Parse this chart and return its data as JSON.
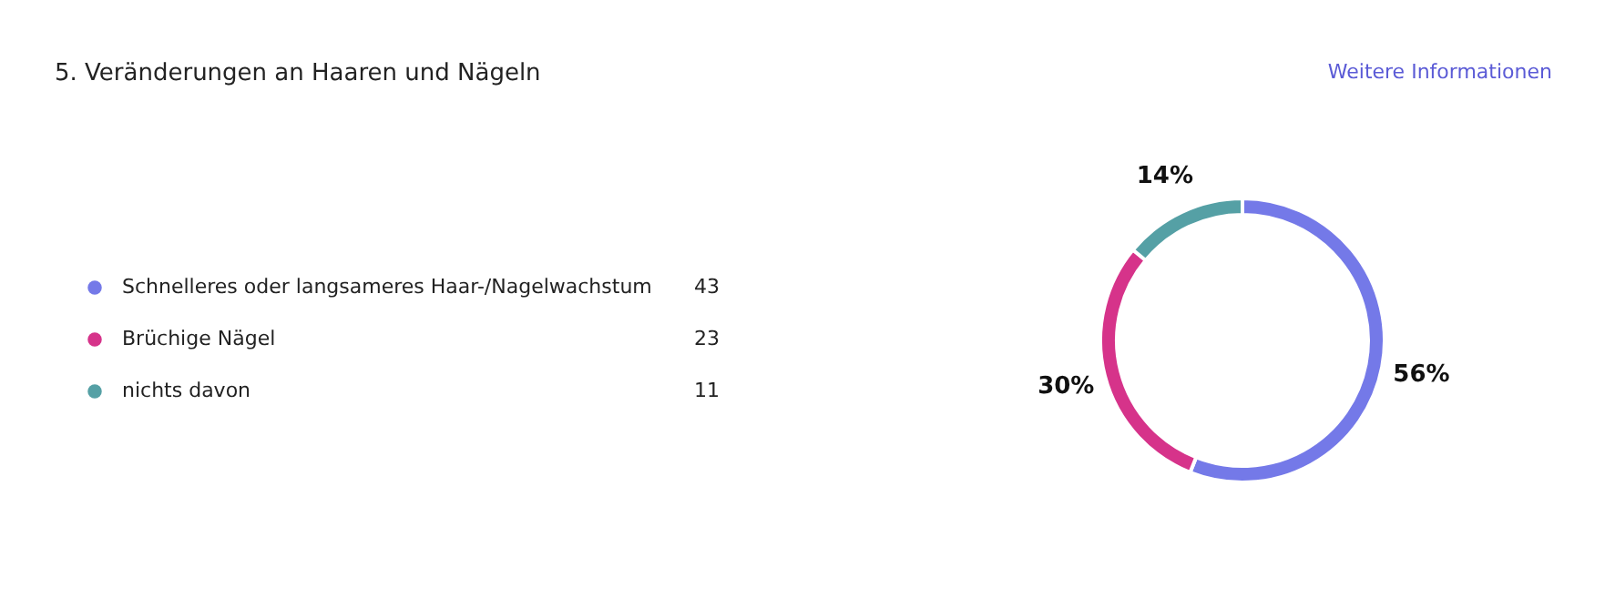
{
  "chart_data": {
    "type": "donut",
    "title": "5. Veränderungen an Haaren und Nägeln",
    "categories": [
      "Schnelleres oder langsameres Haar-/Nagelwachstum",
      "Brüchige Nägel",
      "nichts davon"
    ],
    "values": [
      56,
      30,
      14
    ],
    "value_labels": [
      "56%",
      "30%",
      "14%"
    ],
    "colors": [
      "#7479e8",
      "#d6338a",
      "#55a0a5"
    ],
    "legend": "left",
    "annotations": [
      "Weitere Informationen",
      "43",
      "23",
      "11"
    ]
  }
}
